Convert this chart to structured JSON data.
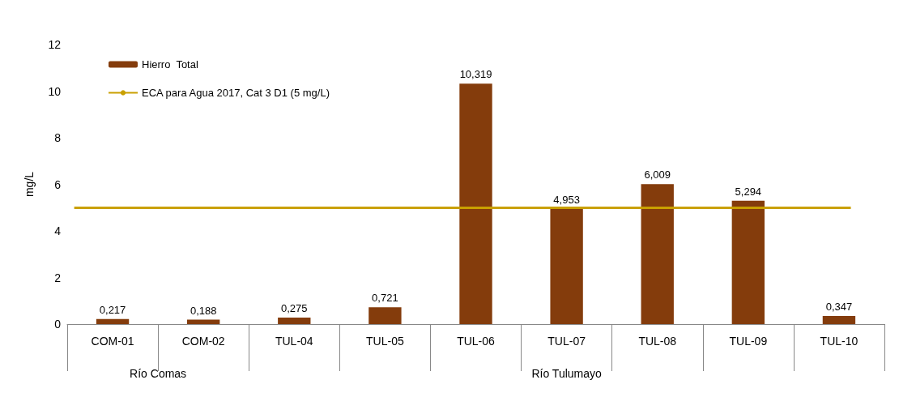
{
  "chart_data": {
    "type": "bar",
    "ylabel": "mg/L",
    "categories": [
      "COM-01",
      "COM-02",
      "TUL-04",
      "TUL-05",
      "TUL-06",
      "TUL-07",
      "TUL-08",
      "TUL-09",
      "TUL-10"
    ],
    "series": [
      {
        "name": "Hierro  Total",
        "color": "#843c0c",
        "values": [
          0.217,
          0.188,
          0.275,
          0.721,
          10.319,
          4.953,
          6.009,
          5.294,
          0.347
        ],
        "value_labels": [
          "0,217",
          "0,188",
          "0,275",
          "0,721",
          "10,319",
          "4,953",
          "6,009",
          "5,294",
          "0,347"
        ]
      }
    ],
    "ref_lines": [
      {
        "axis": "y",
        "value": 5,
        "label": "ECA para Agua 2017, Cat 3 D1 (5 mg/L)",
        "color": "#c9a000"
      }
    ],
    "annotations": [
      "Río Comas",
      "Río Tulumayo"
    ],
    "ylim": [
      0,
      12
    ],
    "yticks": [
      0,
      2,
      4,
      6,
      8,
      10,
      12
    ],
    "grid": false,
    "legend": "top left"
  }
}
